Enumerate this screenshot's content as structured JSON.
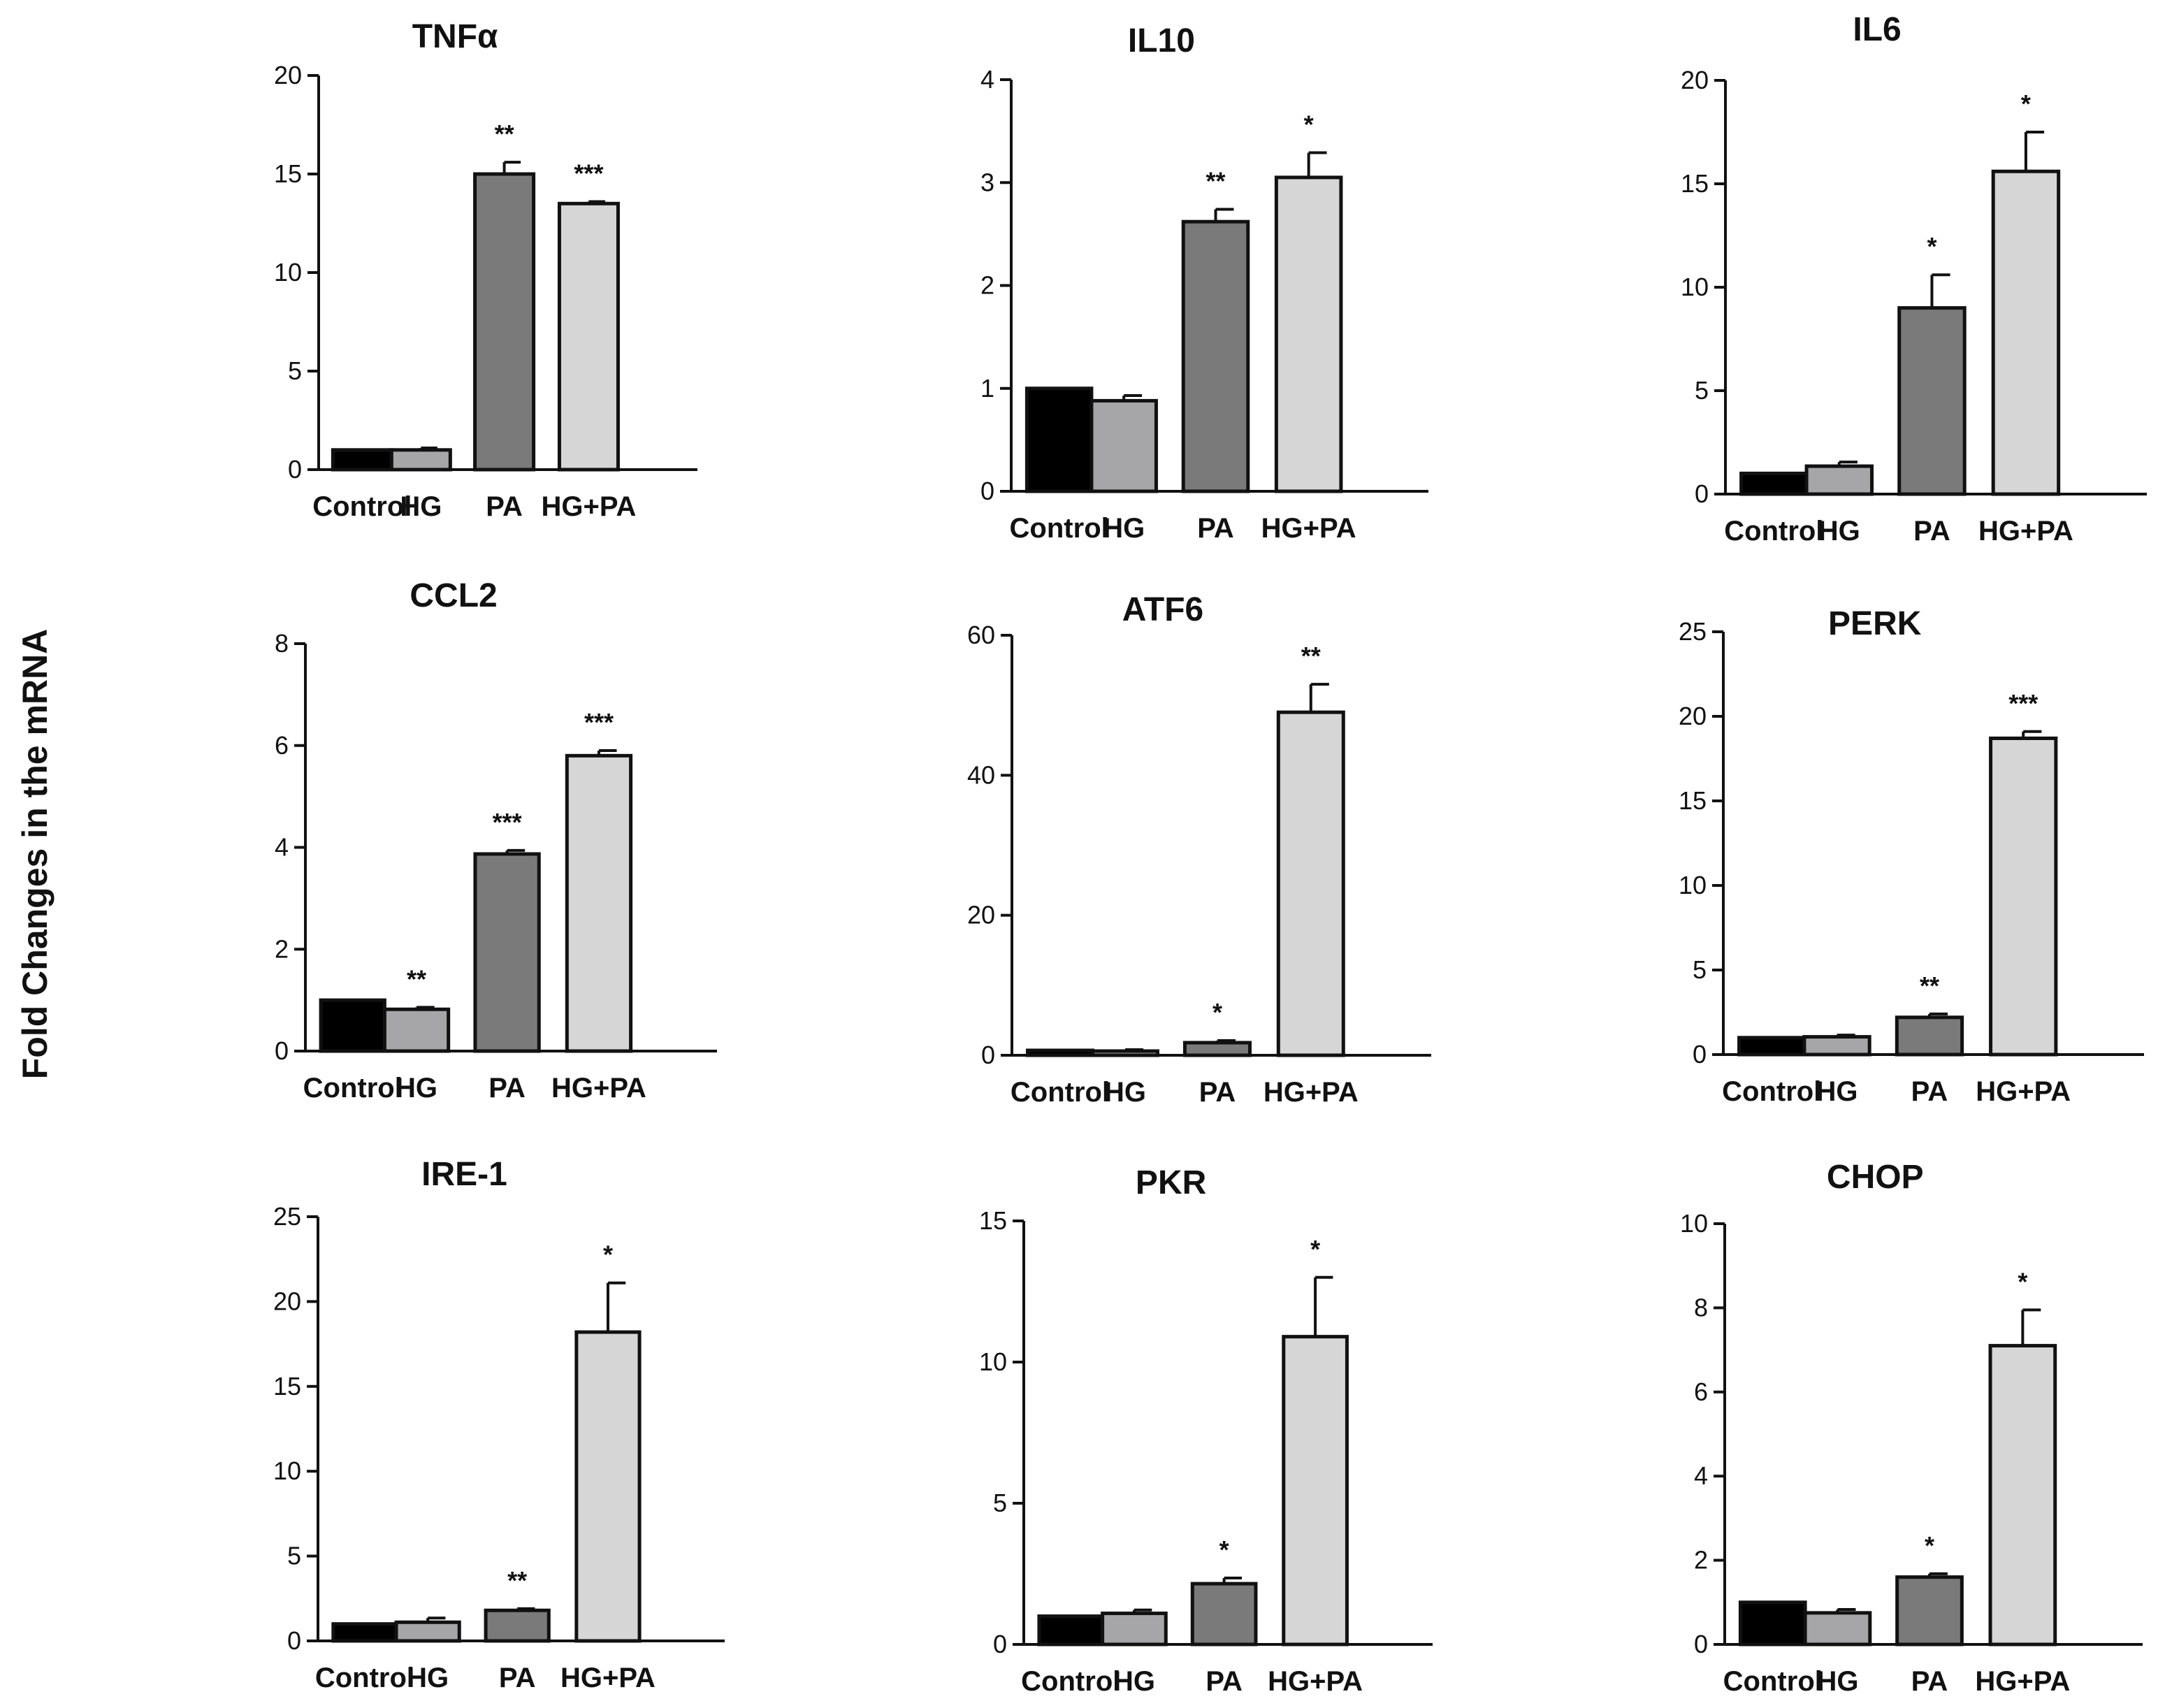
{
  "figure": {
    "ylabel": "Fold Changes in the mRNA",
    "groups": [
      "Control",
      "HG",
      "PA",
      "HG+PA"
    ],
    "group_colors": [
      "#000000",
      "#a6a6a8",
      "#7a7a7a",
      "#d6d6d6"
    ]
  },
  "chart_data": [
    {
      "type": "bar",
      "title": "TNFα",
      "categories": [
        "Control",
        "HG",
        "PA",
        "HG+PA"
      ],
      "values": [
        1.0,
        1.0,
        15.0,
        13.5
      ],
      "errors": [
        0,
        0.1,
        0.6,
        0.1
      ],
      "significance": [
        "",
        "",
        "**",
        "***"
      ],
      "ylim": [
        0,
        20
      ],
      "yticks": [
        0,
        5,
        10,
        15,
        20
      ]
    },
    {
      "type": "bar",
      "title": "IL10",
      "categories": [
        "Control",
        "HG",
        "PA",
        "HG+PA"
      ],
      "values": [
        1.0,
        0.88,
        2.62,
        3.05
      ],
      "errors": [
        0,
        0.05,
        0.12,
        0.24
      ],
      "significance": [
        "",
        "",
        "**",
        "*"
      ],
      "ylim": [
        0,
        4
      ],
      "yticks": [
        0,
        1,
        2,
        3,
        4
      ]
    },
    {
      "type": "bar",
      "title": "IL6",
      "categories": [
        "Control",
        "HG",
        "PA",
        "HG+PA"
      ],
      "values": [
        1.0,
        1.35,
        9.0,
        15.6
      ],
      "errors": [
        0,
        0.2,
        1.6,
        1.9
      ],
      "significance": [
        "",
        "",
        "*",
        "*"
      ],
      "ylim": [
        0,
        20
      ],
      "yticks": [
        0,
        5,
        10,
        15,
        20
      ]
    },
    {
      "type": "bar",
      "title": "CCL2",
      "categories": [
        "Control",
        "HG",
        "PA",
        "HG+PA"
      ],
      "values": [
        1.0,
        0.82,
        3.87,
        5.8
      ],
      "errors": [
        0,
        0.04,
        0.07,
        0.1
      ],
      "significance": [
        "",
        "**",
        "***",
        "***"
      ],
      "ylim": [
        0,
        8
      ],
      "yticks": [
        0,
        2,
        4,
        6,
        8
      ]
    },
    {
      "type": "bar",
      "title": "ATF6",
      "categories": [
        "Control",
        "HG",
        "PA",
        "HG+PA"
      ],
      "values": [
        0.7,
        0.6,
        1.8,
        49.0
      ],
      "errors": [
        0,
        0.2,
        0.3,
        4.0
      ],
      "significance": [
        "",
        "",
        "*",
        "**"
      ],
      "ylim": [
        0,
        60
      ],
      "yticks": [
        0,
        20,
        40,
        60
      ]
    },
    {
      "type": "bar",
      "title": "PERK",
      "categories": [
        "Control",
        "HG",
        "PA",
        "HG+PA"
      ],
      "values": [
        1.0,
        1.05,
        2.2,
        18.7
      ],
      "errors": [
        0,
        0.1,
        0.2,
        0.4
      ],
      "significance": [
        "",
        "",
        "**",
        "***"
      ],
      "ylim": [
        0,
        25
      ],
      "yticks": [
        0,
        5,
        10,
        15,
        20,
        25
      ]
    },
    {
      "type": "bar",
      "title": "IRE-1",
      "categories": [
        "Control",
        "HG",
        "PA",
        "HG+PA"
      ],
      "values": [
        1.0,
        1.1,
        1.8,
        18.2
      ],
      "errors": [
        0,
        0.25,
        0.1,
        2.9
      ],
      "significance": [
        "",
        "",
        "**",
        "*"
      ],
      "ylim": [
        0,
        25
      ],
      "yticks": [
        0,
        5,
        10,
        15,
        20,
        25
      ]
    },
    {
      "type": "bar",
      "title": "PKR",
      "categories": [
        "Control",
        "HG",
        "PA",
        "HG+PA"
      ],
      "values": [
        1.0,
        1.1,
        2.15,
        10.9
      ],
      "errors": [
        0,
        0.12,
        0.2,
        2.1
      ],
      "significance": [
        "",
        "",
        "*",
        "*"
      ],
      "ylim": [
        0,
        15
      ],
      "yticks": [
        0,
        5,
        10,
        15
      ]
    },
    {
      "type": "bar",
      "title": "CHOP",
      "categories": [
        "Control",
        "HG",
        "PA",
        "HG+PA"
      ],
      "values": [
        1.0,
        0.75,
        1.6,
        7.1
      ],
      "errors": [
        0,
        0.08,
        0.08,
        0.85
      ],
      "significance": [
        "",
        "",
        "*",
        "*"
      ],
      "ylim": [
        0,
        10
      ],
      "yticks": [
        0,
        2,
        4,
        6,
        8,
        10
      ]
    }
  ]
}
